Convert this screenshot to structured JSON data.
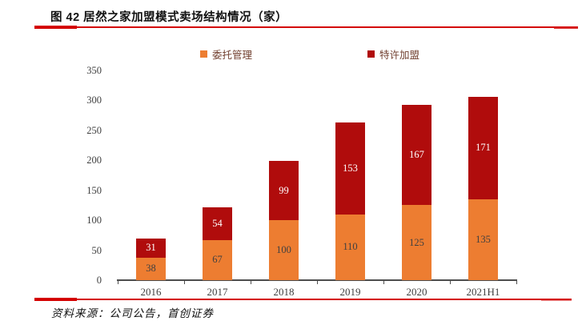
{
  "figure": {
    "title": "图 42 居然之家加盟模式卖场结构情况（家）",
    "source": "资料来源：公司公告，首创证券"
  },
  "colors": {
    "orange": "#ED7D31",
    "dark_red": "#B00C0C",
    "rule_red": "#D40000",
    "axis": "#4D4D4D",
    "tick_text": "#3F3F3F",
    "legend_text": "#713F2F",
    "label_on_orange": "#404040",
    "label_on_red": "#FFFFFF"
  },
  "chart_data": {
    "type": "bar",
    "stacked": true,
    "title": "图 42 居然之家加盟模式卖场结构情况（家）",
    "categories": [
      "2016",
      "2017",
      "2018",
      "2019",
      "2020",
      "2021H1"
    ],
    "series": [
      {
        "name": "委托管理",
        "color_key": "orange",
        "label_color_key": "label_on_orange",
        "values": [
          38,
          67,
          100,
          110,
          125,
          135
        ]
      },
      {
        "name": "特许加盟",
        "color_key": "dark_red",
        "label_color_key": "label_on_red",
        "values": [
          31,
          54,
          99,
          153,
          167,
          171
        ]
      }
    ],
    "totals": [
      69,
      121,
      199,
      263,
      292,
      306
    ],
    "y_ticks": [
      0,
      50,
      100,
      150,
      200,
      250,
      300,
      350
    ],
    "ylim": [
      0,
      350
    ],
    "xlabel": "",
    "ylabel": "",
    "grid": false,
    "legend_position": "top"
  }
}
